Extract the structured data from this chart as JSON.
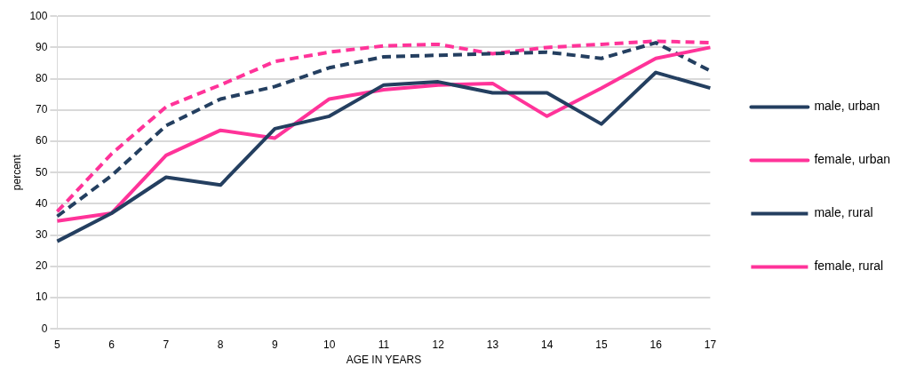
{
  "chart_data": {
    "type": "line",
    "xlabel": "AGE IN YEARS",
    "ylabel": "percent",
    "categories": [
      "5",
      "6",
      "7",
      "8",
      "9",
      "10",
      "11",
      "12",
      "13",
      "14",
      "15",
      "16",
      "17"
    ],
    "series": [
      {
        "name": "male, urban",
        "color": "#243f60",
        "line_style": "solid",
        "values": [
          28,
          37,
          48.5,
          46,
          64,
          68,
          78,
          79,
          75.5,
          75.5,
          65.5,
          82,
          77
        ]
      },
      {
        "name": "female, urban",
        "color": "#ff3399",
        "line_style": "solid",
        "values": [
          34.5,
          37,
          55.5,
          63.5,
          61,
          73.5,
          76.5,
          78,
          78.5,
          68,
          77,
          86.5,
          90
        ]
      },
      {
        "name": "male, rural",
        "color": "#243f60",
        "line_style": "dashed",
        "values": [
          36,
          49,
          65,
          73.5,
          77.5,
          83.5,
          87,
          87.5,
          88,
          88.5,
          86.5,
          91.5,
          82.5
        ]
      },
      {
        "name": "female, rural",
        "color": "#ff3399",
        "line_style": "dashed",
        "values": [
          37.5,
          56,
          71,
          78,
          85.5,
          88.5,
          90.5,
          91,
          88,
          90,
          91,
          92,
          91.5
        ]
      }
    ],
    "ylim": [
      0,
      100
    ],
    "yticks": [
      0,
      10,
      20,
      30,
      40,
      50,
      60,
      70,
      80,
      90,
      100
    ],
    "grid": "y",
    "legend": "right",
    "marker": "none"
  }
}
